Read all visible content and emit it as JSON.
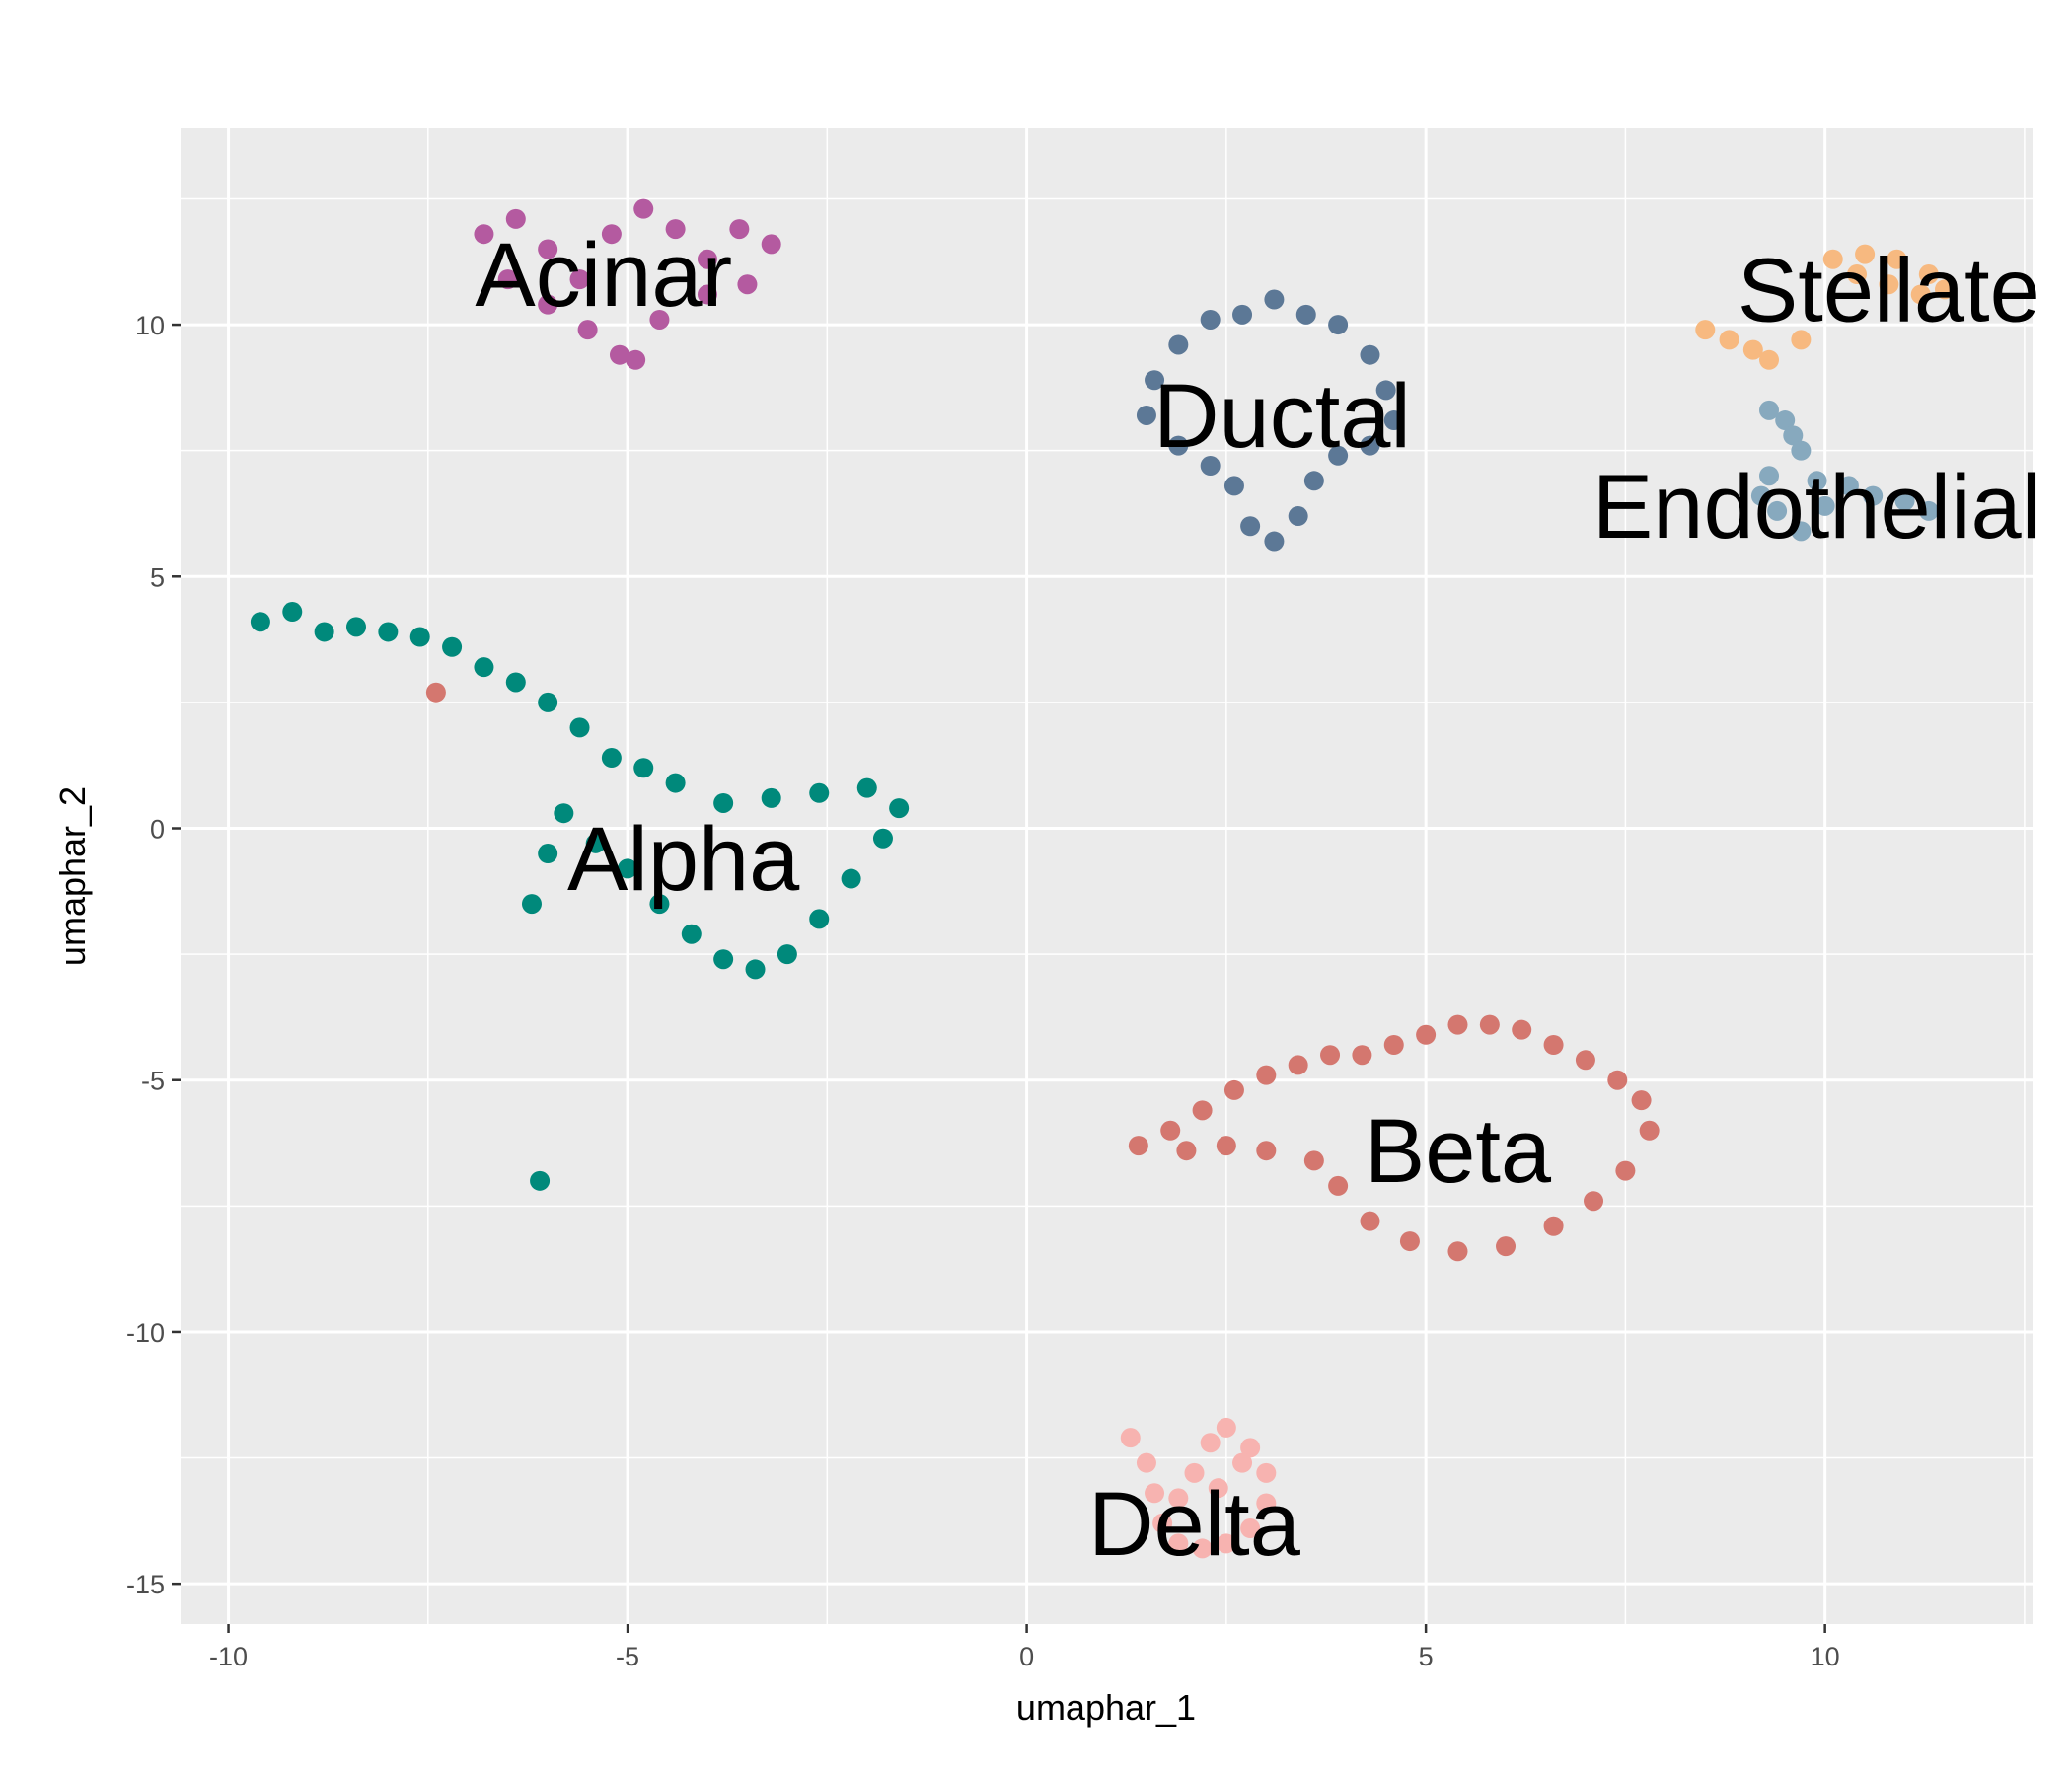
{
  "chart_data": {
    "type": "scatter",
    "title": "",
    "xlabel": "umaphar_1",
    "ylabel": "umaphar_2",
    "xlim": [
      -10.6,
      12.6
    ],
    "ylim": [
      -15.8,
      13.9
    ],
    "x_ticks": [
      -10,
      -5,
      0,
      5,
      10
    ],
    "x_tick_labels": [
      "-10",
      "-5",
      "0",
      "5",
      "10"
    ],
    "y_ticks": [
      -15,
      -10,
      -5,
      0,
      5,
      10
    ],
    "y_tick_labels": [
      "-15",
      "-10",
      "-5",
      "0",
      "5",
      "10"
    ],
    "grid": true,
    "legend": "none",
    "background_color": "#ebebeb",
    "grid_color": "#ffffff",
    "clusters": [
      {
        "name": "Alpha",
        "color": "#00897b",
        "label_position": [
          -4.3,
          -0.6
        ],
        "points": [
          [
            -9.6,
            4.1
          ],
          [
            -9.2,
            4.3
          ],
          [
            -8.8,
            3.9
          ],
          [
            -8.4,
            4.0
          ],
          [
            -8.0,
            3.9
          ],
          [
            -7.6,
            3.8
          ],
          [
            -7.2,
            3.6
          ],
          [
            -6.8,
            3.2
          ],
          [
            -6.4,
            2.9
          ],
          [
            -6.0,
            2.5
          ],
          [
            -5.6,
            2.0
          ],
          [
            -5.2,
            1.4
          ],
          [
            -4.8,
            1.2
          ],
          [
            -4.4,
            0.9
          ],
          [
            -6.1,
            -7.0
          ],
          [
            -5.4,
            -0.3
          ],
          [
            -5.0,
            -0.8
          ],
          [
            -4.6,
            -1.5
          ],
          [
            -4.2,
            -2.1
          ],
          [
            -3.8,
            -2.6
          ],
          [
            -3.4,
            -2.8
          ],
          [
            -3.0,
            -2.5
          ],
          [
            -2.6,
            -1.8
          ],
          [
            -2.2,
            -1.0
          ],
          [
            -1.8,
            -0.2
          ],
          [
            -1.6,
            0.4
          ],
          [
            -2.0,
            0.8
          ],
          [
            -2.6,
            0.7
          ],
          [
            -3.2,
            0.6
          ],
          [
            -3.8,
            0.5
          ],
          [
            -6.2,
            -1.5
          ],
          [
            -6.0,
            -0.5
          ],
          [
            -5.8,
            0.3
          ]
        ]
      },
      {
        "name": "Beta",
        "color": "#d4776f",
        "label_position": [
          5.4,
          -6.4
        ],
        "points": [
          [
            1.4,
            -6.3
          ],
          [
            1.8,
            -6.0
          ],
          [
            2.2,
            -5.6
          ],
          [
            2.6,
            -5.2
          ],
          [
            3.0,
            -4.9
          ],
          [
            3.4,
            -4.7
          ],
          [
            3.8,
            -4.5
          ],
          [
            4.2,
            -4.5
          ],
          [
            4.6,
            -4.3
          ],
          [
            5.0,
            -4.1
          ],
          [
            5.4,
            -3.9
          ],
          [
            5.8,
            -3.9
          ],
          [
            6.2,
            -4.0
          ],
          [
            6.6,
            -4.3
          ],
          [
            7.0,
            -4.6
          ],
          [
            7.4,
            -5.0
          ],
          [
            7.7,
            -5.4
          ],
          [
            7.8,
            -6.0
          ],
          [
            7.5,
            -6.8
          ],
          [
            7.1,
            -7.4
          ],
          [
            6.6,
            -7.9
          ],
          [
            6.0,
            -8.3
          ],
          [
            5.4,
            -8.4
          ],
          [
            4.8,
            -8.2
          ],
          [
            4.3,
            -7.8
          ],
          [
            3.9,
            -7.1
          ],
          [
            3.6,
            -6.6
          ],
          [
            3.0,
            -6.4
          ],
          [
            2.5,
            -6.3
          ],
          [
            2.0,
            -6.4
          ],
          [
            -7.4,
            2.7
          ]
        ]
      },
      {
        "name": "Delta",
        "color": "#f7b3b0",
        "label_position": [
          2.1,
          -13.8
        ],
        "points": [
          [
            1.3,
            -12.1
          ],
          [
            1.5,
            -12.6
          ],
          [
            1.6,
            -13.2
          ],
          [
            1.7,
            -13.8
          ],
          [
            1.9,
            -14.2
          ],
          [
            2.2,
            -14.3
          ],
          [
            2.5,
            -14.2
          ],
          [
            2.8,
            -13.9
          ],
          [
            3.0,
            -13.4
          ],
          [
            3.0,
            -12.8
          ],
          [
            2.8,
            -12.3
          ],
          [
            2.5,
            -11.9
          ],
          [
            2.3,
            -12.2
          ],
          [
            2.1,
            -12.8
          ],
          [
            1.9,
            -13.3
          ],
          [
            2.4,
            -13.1
          ],
          [
            2.7,
            -12.6
          ]
        ]
      },
      {
        "name": "Acinar",
        "color": "#b45aa0",
        "label_position": [
          -5.3,
          11.0
        ],
        "points": [
          [
            -6.8,
            11.8
          ],
          [
            -6.4,
            12.1
          ],
          [
            -6.0,
            11.5
          ],
          [
            -5.6,
            10.9
          ],
          [
            -5.2,
            11.8
          ],
          [
            -4.8,
            12.3
          ],
          [
            -4.4,
            11.9
          ],
          [
            -4.0,
            11.3
          ],
          [
            -3.6,
            11.9
          ],
          [
            -3.2,
            11.6
          ],
          [
            -3.5,
            10.8
          ],
          [
            -4.0,
            10.6
          ],
          [
            -4.6,
            10.1
          ],
          [
            -5.1,
            9.4
          ],
          [
            -5.5,
            9.9
          ],
          [
            -6.0,
            10.4
          ],
          [
            -6.5,
            10.9
          ],
          [
            -4.9,
            9.3
          ]
        ]
      },
      {
        "name": "Ductal",
        "color": "#5c7896",
        "label_position": [
          3.2,
          8.2
        ],
        "points": [
          [
            1.6,
            8.9
          ],
          [
            1.9,
            9.6
          ],
          [
            2.3,
            10.1
          ],
          [
            2.7,
            10.2
          ],
          [
            3.1,
            10.5
          ],
          [
            3.5,
            10.2
          ],
          [
            3.9,
            10.0
          ],
          [
            4.3,
            9.4
          ],
          [
            4.5,
            8.7
          ],
          [
            4.6,
            8.1
          ],
          [
            4.3,
            7.6
          ],
          [
            3.9,
            7.4
          ],
          [
            3.6,
            6.9
          ],
          [
            3.4,
            6.2
          ],
          [
            3.1,
            5.7
          ],
          [
            2.8,
            6.0
          ],
          [
            2.6,
            6.8
          ],
          [
            2.3,
            7.2
          ],
          [
            1.9,
            7.6
          ],
          [
            1.5,
            8.2
          ]
        ]
      },
      {
        "name": "Stellate",
        "color": "#f7b980",
        "label_position": [
          10.8,
          10.7
        ],
        "points": [
          [
            8.5,
            9.9
          ],
          [
            8.8,
            9.7
          ],
          [
            9.1,
            9.5
          ],
          [
            9.3,
            9.3
          ],
          [
            9.7,
            9.7
          ],
          [
            10.1,
            11.3
          ],
          [
            10.5,
            11.4
          ],
          [
            10.9,
            11.3
          ],
          [
            11.3,
            11.0
          ],
          [
            11.5,
            10.7
          ],
          [
            11.2,
            10.6
          ],
          [
            10.8,
            10.8
          ],
          [
            10.4,
            11.0
          ]
        ]
      },
      {
        "name": "Endothelial",
        "color": "#87a9be",
        "label_position": [
          9.9,
          6.4
        ],
        "points": [
          [
            9.3,
            8.3
          ],
          [
            9.5,
            8.1
          ],
          [
            9.6,
            7.8
          ],
          [
            9.7,
            7.5
          ],
          [
            9.3,
            7.0
          ],
          [
            9.2,
            6.6
          ],
          [
            9.4,
            6.3
          ],
          [
            9.7,
            5.9
          ],
          [
            10.0,
            6.4
          ],
          [
            10.3,
            6.8
          ],
          [
            10.6,
            6.6
          ],
          [
            11.0,
            6.5
          ],
          [
            11.3,
            6.3
          ],
          [
            9.9,
            6.9
          ]
        ]
      }
    ]
  }
}
